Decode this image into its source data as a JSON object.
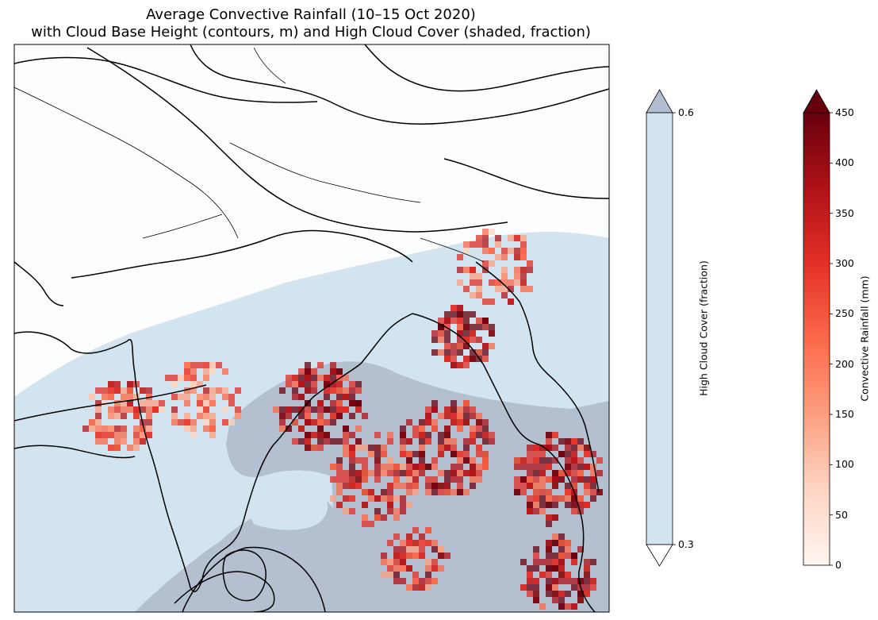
{
  "title": {
    "line1": "Average Convective Rainfall (10–15 Oct 2020)",
    "line2": "with Cloud Base Height (contours, m) and High Cloud Cover (shaded, fraction)"
  },
  "colorbars": {
    "high_cloud": {
      "label": "High Cloud Cover (fraction)",
      "ticks": [
        "0.6",
        "0.3"
      ],
      "min": 0.3,
      "max": 0.6,
      "extend": "both",
      "colors": {
        "main": "#d2e4f0",
        "upper_triangle": "#b3bdd0",
        "lower_triangle": "#ffffff"
      }
    },
    "rainfall": {
      "label": "Convective Rainfall (mm)",
      "ticks": [
        "450",
        "400",
        "350",
        "300",
        "250",
        "200",
        "150",
        "100",
        "50",
        "0"
      ],
      "min": 0,
      "max": 450,
      "extend": "max",
      "colormap": "Reds",
      "colors": [
        "#fff5f0",
        "#fdd4c2",
        "#fca082",
        "#fb694a",
        "#e32f27",
        "#b11218",
        "#67000d"
      ]
    }
  },
  "map": {
    "background": "#fbfdff",
    "cloud_light": "#d2e4f0",
    "cloud_dark": "#b4bfd0",
    "coastline_color": "#000000"
  }
}
